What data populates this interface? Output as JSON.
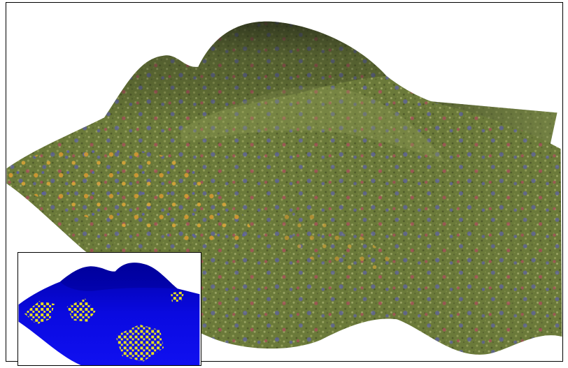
{
  "scene": {
    "main_view": "textured-terrain",
    "inset_view": "label-map-terrain"
  },
  "colors": {
    "background": "#ffffff",
    "frame_border": "#000000",
    "terrain_dark": "#2f3520",
    "terrain_mid": "#6b7a3a",
    "terrain_light": "#8f9a55",
    "flower_blue": "#5d5fa8",
    "flower_red": "#b04a5f",
    "flower_orange": "#d99a30",
    "inset_blue": "#0a0ae0",
    "inset_blue_dark": "#0000a8",
    "inset_yellow": "#e8e020"
  }
}
